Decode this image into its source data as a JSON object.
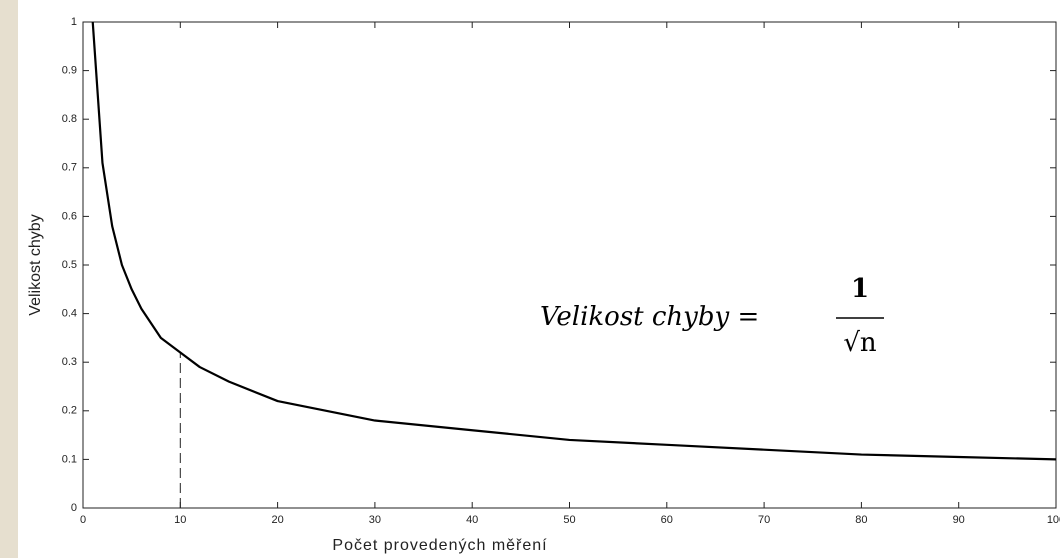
{
  "chart_data": {
    "type": "line",
    "x_label": "Počet provedených měření",
    "y_label": "Velikost chyby",
    "annotation": {
      "text": "Velikost chyby =",
      "numerator": "1",
      "denominator": "√n"
    },
    "x": [
      1,
      2,
      3,
      4,
      5,
      6,
      8,
      10,
      12,
      15,
      20,
      25,
      30,
      40,
      50,
      60,
      70,
      80,
      90,
      100
    ],
    "series": [
      {
        "name": "1/√n",
        "color": "#000000",
        "values": [
          1,
          0.71,
          0.58,
          0.5,
          0.45,
          0.41,
          0.35,
          0.32,
          0.29,
          0.26,
          0.22,
          0.2,
          0.18,
          0.16,
          0.14,
          0.13,
          0.12,
          0.11,
          0.105,
          0.1
        ]
      }
    ],
    "reference_line": {
      "x": 10,
      "y": 0.32
    },
    "xlim": [
      0,
      100
    ],
    "xticks": [
      0,
      10,
      20,
      30,
      40,
      50,
      60,
      70,
      80,
      90,
      100
    ],
    "ylim": [
      0,
      1
    ],
    "yticks": [
      0,
      0.1,
      0.2,
      0.3,
      0.4,
      0.5,
      0.6,
      0.7,
      0.8,
      0.9,
      1
    ],
    "grid": false
  }
}
